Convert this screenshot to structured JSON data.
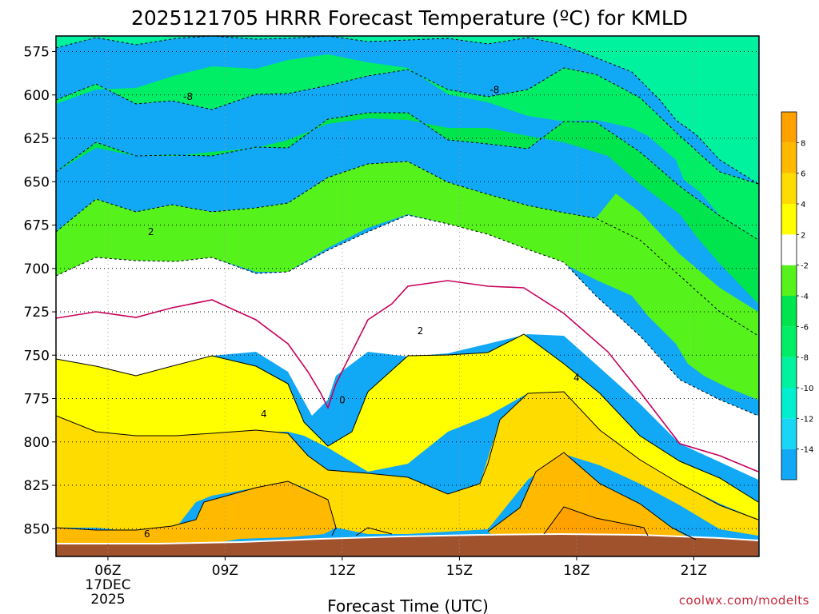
{
  "chart_data": {
    "type": "heatmap",
    "title": "2025121705 HRRR Forecast Temperature (ºC) for KMLD",
    "xlabel": "Forecast Time (UTC)",
    "ylabel": "",
    "credit": "coolwx.com/modelts",
    "x_axis": {
      "range_hours": [
        4.67,
        22.67
      ],
      "ticks": [
        {
          "hour": 6,
          "label": "06Z",
          "sub1": "17DEC",
          "sub2": "2025"
        },
        {
          "hour": 9,
          "label": "09Z"
        },
        {
          "hour": 12,
          "label": "12Z"
        },
        {
          "hour": 15,
          "label": "15Z"
        },
        {
          "hour": 18,
          "label": "18Z"
        },
        {
          "hour": 21,
          "label": "21Z"
        }
      ]
    },
    "y_axis": {
      "unit": "hPa",
      "range": [
        866,
        566
      ],
      "ticks": [
        "575",
        "600",
        "625",
        "650",
        "675",
        "700",
        "725",
        "750",
        "775",
        "800",
        "825",
        "850"
      ],
      "tick_values": [
        575,
        600,
        625,
        650,
        675,
        700,
        725,
        750,
        775,
        800,
        825,
        850
      ],
      "grid": "dotted"
    },
    "colorbar": {
      "bounds": [
        -16,
        -14,
        -12,
        -10,
        -8,
        -6,
        -4,
        -2,
        2,
        4,
        6,
        8,
        10
      ],
      "labels": [
        "-14",
        "-12",
        "-10",
        "-8",
        "-6",
        "-4",
        "-2",
        "2",
        "4",
        "6",
        "8"
      ],
      "colors": [
        "#11a8f5",
        "#19d6f7",
        "#00f0cf",
        "#00f29e",
        "#00ee66",
        "#00e44d",
        "#55f21c",
        "#ffffff",
        "#ffff00",
        "#ffdc00",
        "#ffba00",
        "#ffa200"
      ]
    },
    "terrain_color": "#a0522d",
    "contour_labels": [
      {
        "text": "-8",
        "hour": 8.05,
        "p": 601
      },
      {
        "text": "-8",
        "hour": 15.9,
        "p": 597
      },
      {
        "text": "2",
        "hour": 7.1,
        "p": 679
      },
      {
        "text": "0",
        "hour": 12.0,
        "p": 776
      },
      {
        "text": "2",
        "hour": 14.0,
        "p": 736
      },
      {
        "text": "4",
        "hour": 9.99,
        "p": 784
      },
      {
        "text": "4",
        "hour": 18.0,
        "p": 763
      },
      {
        "text": "6",
        "hour": 7.0,
        "p": 853
      }
    ]
  }
}
